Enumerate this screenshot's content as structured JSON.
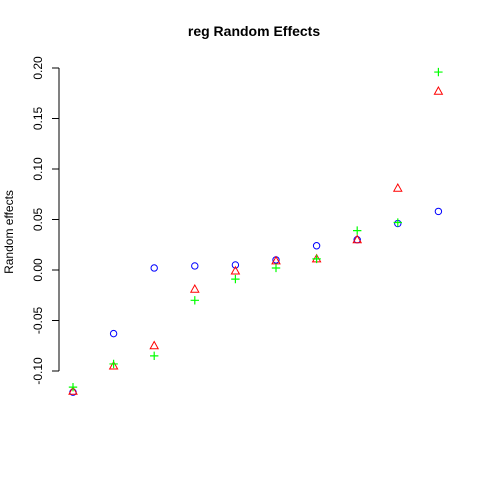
{
  "chart_data": {
    "type": "scatter",
    "title": "reg Random Effects",
    "xlabel": "",
    "ylabel": "Random effects",
    "ylim": [
      -0.13,
      0.2
    ],
    "y_ticks": [
      "-0.10",
      "-0.05",
      "0.00",
      "0.05",
      "0.10",
      "0.15",
      "0.20"
    ],
    "y_tick_values": [
      -0.1,
      -0.05,
      0.0,
      0.05,
      0.1,
      0.15,
      0.2
    ],
    "x": [
      1,
      2,
      3,
      4,
      5,
      6,
      7,
      8,
      9,
      10
    ],
    "grid": false,
    "series": [
      {
        "marker": "circle",
        "color": "#0000ff",
        "values": [
          -0.121,
          -0.063,
          0.002,
          0.004,
          0.005,
          0.01,
          0.024,
          0.03,
          0.046,
          0.058
        ]
      },
      {
        "marker": "triangle",
        "color": "#ff0000",
        "values": [
          -0.12,
          -0.095,
          -0.075,
          -0.019,
          -0.001,
          0.009,
          0.011,
          0.03,
          0.081,
          0.177
        ]
      },
      {
        "marker": "plus",
        "color": "#00ff00",
        "values": [
          -0.116,
          -0.093,
          -0.085,
          -0.03,
          -0.009,
          0.002,
          0.011,
          0.039,
          0.047,
          0.196
        ]
      }
    ]
  }
}
